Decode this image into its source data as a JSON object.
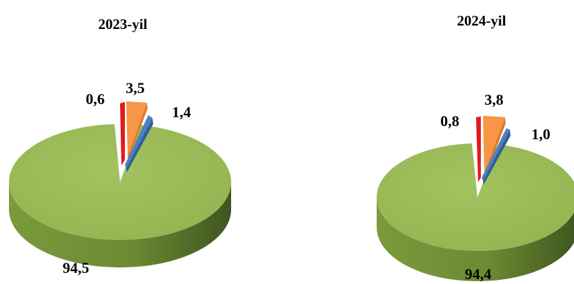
{
  "chart_data": [
    {
      "type": "pie",
      "title": "2023-yil",
      "slices": [
        {
          "value": 94.5,
          "label": "94,5",
          "color": "#9bbb59"
        },
        {
          "value": 0.6,
          "label": "0,6",
          "color": "#e31a1c"
        },
        {
          "value": 3.5,
          "label": "3,5",
          "color": "#f79646"
        },
        {
          "value": 1.4,
          "label": "1,4",
          "color": "#4f81bd"
        }
      ]
    },
    {
      "type": "pie",
      "title": "2024-yil",
      "slices": [
        {
          "value": 94.4,
          "label": "94,4",
          "color": "#9bbb59"
        },
        {
          "value": 0.8,
          "label": "0,8",
          "color": "#e31a1c"
        },
        {
          "value": 3.8,
          "label": "3,8",
          "color": "#f79646"
        },
        {
          "value": 1.0,
          "label": "1,0",
          "color": "#4f81bd"
        }
      ]
    }
  ]
}
